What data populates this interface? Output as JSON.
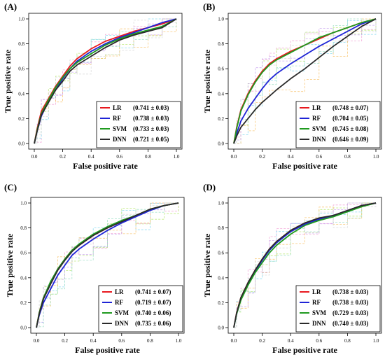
{
  "figure": {
    "xlabel": "False positive rate",
    "ylabel": "True positive rate",
    "tick_labels": [
      "0.0",
      "0.2",
      "0.4",
      "0.6",
      "0.8",
      "1.0"
    ],
    "colors": {
      "LR": "#e8191f",
      "RF": "#1f24d6",
      "SVM": "#1f9a1f",
      "DNN": "#2a2a2a",
      "fold_lines": [
        "#f2a3d6",
        "#7fd7f0",
        "#b9e873",
        "#f7c36b",
        "#c8a2ef",
        "#9ee0c7",
        "#d8d8d8"
      ]
    }
  },
  "chart_data": [
    {
      "type": "line",
      "panel_label": "(A)",
      "xlabel": "False positive rate",
      "ylabel": "True positive rate",
      "xlim": [
        0,
        1
      ],
      "ylim": [
        0,
        1
      ],
      "legend_position": "bottom-right",
      "series": [
        {
          "name": "LR",
          "legend": "(0.741 ± 0.03)",
          "x": [
            0,
            0.02,
            0.05,
            0.1,
            0.15,
            0.2,
            0.25,
            0.3,
            0.4,
            0.5,
            0.6,
            0.7,
            0.8,
            0.9,
            1.0
          ],
          "y": [
            0,
            0.12,
            0.26,
            0.36,
            0.46,
            0.54,
            0.62,
            0.68,
            0.76,
            0.82,
            0.86,
            0.9,
            0.93,
            0.96,
            1.0
          ]
        },
        {
          "name": "RF",
          "legend": "(0.738 ± 0.03)",
          "x": [
            0,
            0.02,
            0.05,
            0.1,
            0.15,
            0.2,
            0.25,
            0.3,
            0.4,
            0.5,
            0.6,
            0.7,
            0.8,
            0.9,
            1.0
          ],
          "y": [
            0,
            0.1,
            0.22,
            0.34,
            0.43,
            0.52,
            0.6,
            0.66,
            0.74,
            0.8,
            0.85,
            0.89,
            0.93,
            0.97,
            1.0
          ]
        },
        {
          "name": "SVM",
          "legend": "(0.733 ± 0.03)",
          "x": [
            0,
            0.02,
            0.05,
            0.1,
            0.15,
            0.2,
            0.25,
            0.3,
            0.4,
            0.5,
            0.6,
            0.7,
            0.8,
            0.9,
            1.0
          ],
          "y": [
            0,
            0.11,
            0.24,
            0.35,
            0.45,
            0.53,
            0.6,
            0.65,
            0.72,
            0.79,
            0.84,
            0.88,
            0.91,
            0.94,
            1.0
          ]
        },
        {
          "name": "DNN",
          "legend": "(0.721 ± 0.05)",
          "x": [
            0,
            0.02,
            0.05,
            0.1,
            0.15,
            0.2,
            0.25,
            0.3,
            0.4,
            0.5,
            0.6,
            0.7,
            0.8,
            0.9,
            1.0
          ],
          "y": [
            0,
            0.1,
            0.23,
            0.33,
            0.43,
            0.5,
            0.58,
            0.63,
            0.7,
            0.77,
            0.83,
            0.87,
            0.9,
            0.93,
            1.0
          ]
        }
      ]
    },
    {
      "type": "line",
      "panel_label": "(B)",
      "xlabel": "False positive rate",
      "ylabel": "True positive rate",
      "xlim": [
        0,
        1
      ],
      "ylim": [
        0,
        1
      ],
      "legend_position": "bottom-right",
      "series": [
        {
          "name": "LR",
          "legend": "(0.748 ± 0.07)",
          "x": [
            0,
            0.02,
            0.05,
            0.1,
            0.15,
            0.2,
            0.25,
            0.3,
            0.4,
            0.5,
            0.6,
            0.7,
            0.8,
            0.9,
            1.0
          ],
          "y": [
            0,
            0.13,
            0.27,
            0.4,
            0.5,
            0.58,
            0.64,
            0.68,
            0.74,
            0.79,
            0.84,
            0.89,
            0.93,
            0.97,
            1.0
          ]
        },
        {
          "name": "RF",
          "legend": "(0.704 ± 0.05)",
          "x": [
            0,
            0.02,
            0.05,
            0.1,
            0.15,
            0.2,
            0.25,
            0.3,
            0.4,
            0.5,
            0.6,
            0.7,
            0.8,
            0.9,
            1.0
          ],
          "y": [
            0,
            0.08,
            0.18,
            0.28,
            0.36,
            0.44,
            0.51,
            0.56,
            0.64,
            0.71,
            0.78,
            0.84,
            0.9,
            0.96,
            1.0
          ]
        },
        {
          "name": "SVM",
          "legend": "(0.745 ± 0.08)",
          "x": [
            0,
            0.02,
            0.05,
            0.1,
            0.15,
            0.2,
            0.25,
            0.3,
            0.4,
            0.5,
            0.6,
            0.7,
            0.8,
            0.9,
            1.0
          ],
          "y": [
            0,
            0.12,
            0.26,
            0.39,
            0.49,
            0.57,
            0.63,
            0.67,
            0.73,
            0.79,
            0.85,
            0.89,
            0.93,
            0.97,
            1.0
          ]
        },
        {
          "name": "DNN",
          "legend": "(0.646 ± 0.09)",
          "x": [
            0,
            0.02,
            0.05,
            0.1,
            0.15,
            0.2,
            0.25,
            0.3,
            0.4,
            0.5,
            0.6,
            0.7,
            0.8,
            0.9,
            1.0
          ],
          "y": [
            0,
            0.06,
            0.13,
            0.2,
            0.27,
            0.33,
            0.38,
            0.43,
            0.52,
            0.6,
            0.69,
            0.78,
            0.86,
            0.94,
            1.0
          ]
        }
      ]
    },
    {
      "type": "line",
      "panel_label": "(C)",
      "xlabel": "False positive rate",
      "ylabel": "True positive rate",
      "xlim": [
        0,
        1
      ],
      "ylim": [
        0,
        1
      ],
      "legend_position": "bottom-right",
      "series": [
        {
          "name": "LR",
          "legend": "(0.741 ± 0.07)",
          "x": [
            0,
            0.02,
            0.05,
            0.1,
            0.15,
            0.2,
            0.25,
            0.3,
            0.4,
            0.5,
            0.6,
            0.7,
            0.8,
            0.9,
            1.0
          ],
          "y": [
            0,
            0.12,
            0.24,
            0.36,
            0.47,
            0.55,
            0.62,
            0.66,
            0.74,
            0.8,
            0.85,
            0.9,
            0.95,
            0.98,
            1.0
          ]
        },
        {
          "name": "RF",
          "legend": "(0.719 ± 0.07)",
          "x": [
            0,
            0.02,
            0.05,
            0.1,
            0.15,
            0.2,
            0.25,
            0.3,
            0.4,
            0.5,
            0.6,
            0.7,
            0.8,
            0.9,
            1.0
          ],
          "y": [
            0,
            0.1,
            0.2,
            0.31,
            0.42,
            0.5,
            0.58,
            0.63,
            0.71,
            0.78,
            0.84,
            0.89,
            0.94,
            0.98,
            1.0
          ]
        },
        {
          "name": "SVM",
          "legend": "(0.740 ± 0.06)",
          "x": [
            0,
            0.02,
            0.05,
            0.1,
            0.15,
            0.2,
            0.25,
            0.3,
            0.4,
            0.5,
            0.6,
            0.7,
            0.8,
            0.9,
            1.0
          ],
          "y": [
            0,
            0.12,
            0.24,
            0.37,
            0.47,
            0.55,
            0.62,
            0.67,
            0.75,
            0.81,
            0.86,
            0.9,
            0.95,
            0.98,
            1.0
          ]
        },
        {
          "name": "DNN",
          "legend": "(0.735 ± 0.06)",
          "x": [
            0,
            0.02,
            0.05,
            0.1,
            0.15,
            0.2,
            0.25,
            0.3,
            0.4,
            0.5,
            0.6,
            0.7,
            0.8,
            0.9,
            1.0
          ],
          "y": [
            0,
            0.11,
            0.23,
            0.35,
            0.46,
            0.54,
            0.61,
            0.66,
            0.74,
            0.8,
            0.85,
            0.9,
            0.95,
            0.98,
            1.0
          ]
        }
      ]
    },
    {
      "type": "line",
      "panel_label": "(D)",
      "xlabel": "False positive rate",
      "ylabel": "True positive rate",
      "xlim": [
        0,
        1
      ],
      "ylim": [
        0,
        1
      ],
      "legend_position": "bottom-right",
      "series": [
        {
          "name": "LR",
          "legend": "(0.738 ± 0.03)",
          "x": [
            0,
            0.02,
            0.05,
            0.1,
            0.15,
            0.2,
            0.25,
            0.3,
            0.4,
            0.5,
            0.6,
            0.7,
            0.8,
            0.9,
            1.0
          ],
          "y": [
            0,
            0.12,
            0.24,
            0.36,
            0.46,
            0.55,
            0.63,
            0.69,
            0.78,
            0.84,
            0.87,
            0.9,
            0.94,
            0.98,
            1.0
          ]
        },
        {
          "name": "RF",
          "legend": "(0.738 ± 0.03)",
          "x": [
            0,
            0.02,
            0.05,
            0.1,
            0.15,
            0.2,
            0.25,
            0.3,
            0.4,
            0.5,
            0.6,
            0.7,
            0.8,
            0.9,
            1.0
          ],
          "y": [
            0,
            0.11,
            0.23,
            0.35,
            0.45,
            0.54,
            0.62,
            0.68,
            0.77,
            0.83,
            0.87,
            0.9,
            0.94,
            0.98,
            1.0
          ]
        },
        {
          "name": "SVM",
          "legend": "(0.729 ± 0.03)",
          "x": [
            0,
            0.02,
            0.05,
            0.1,
            0.15,
            0.2,
            0.25,
            0.3,
            0.4,
            0.5,
            0.6,
            0.7,
            0.8,
            0.9,
            1.0
          ],
          "y": [
            0,
            0.11,
            0.22,
            0.34,
            0.44,
            0.52,
            0.6,
            0.66,
            0.75,
            0.82,
            0.86,
            0.89,
            0.93,
            0.97,
            1.0
          ]
        },
        {
          "name": "DNN",
          "legend": "(0.740 ± 0.03)",
          "x": [
            0,
            0.02,
            0.05,
            0.1,
            0.15,
            0.2,
            0.25,
            0.3,
            0.4,
            0.5,
            0.6,
            0.7,
            0.8,
            0.9,
            1.0
          ],
          "y": [
            0,
            0.12,
            0.24,
            0.36,
            0.46,
            0.55,
            0.63,
            0.69,
            0.78,
            0.84,
            0.88,
            0.9,
            0.94,
            0.98,
            1.0
          ]
        }
      ]
    }
  ]
}
